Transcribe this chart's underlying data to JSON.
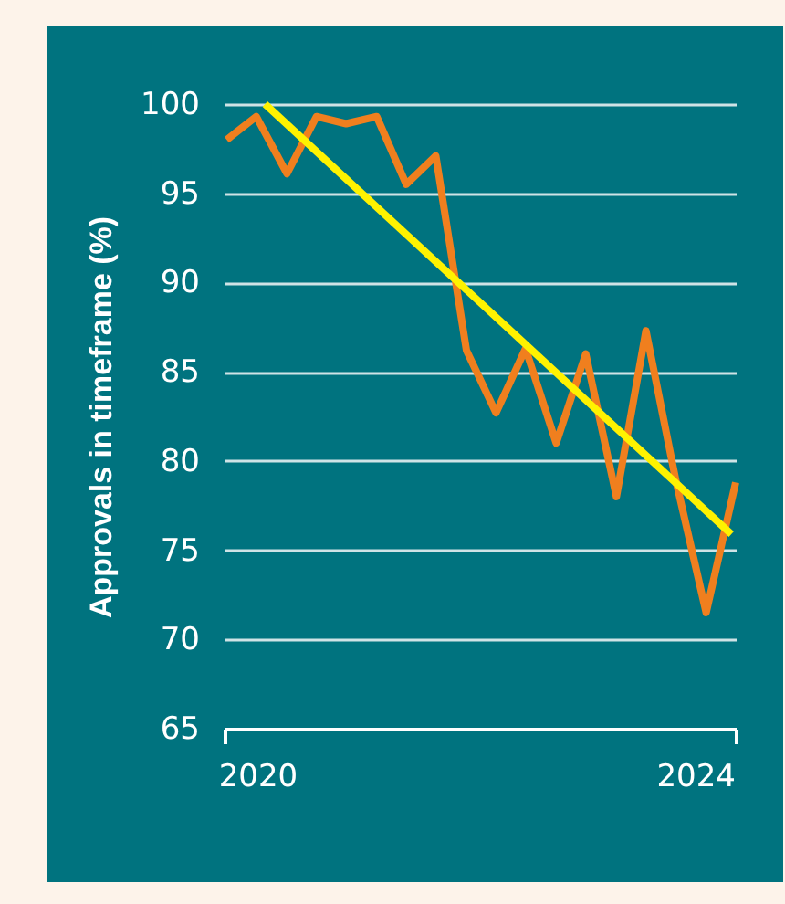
{
  "chart_data": {
    "type": "line",
    "ylabel": "Approvals in timeframe (%)",
    "xlim": [
      2019.7,
      2024.37
    ],
    "xticks": [
      {
        "value": 2019.7,
        "label": null
      },
      2020,
      2024,
      {
        "value": 2024.37,
        "label": null
      }
    ],
    "ylim": [
      65,
      100
    ],
    "yticks": [
      65,
      70,
      75,
      80,
      85,
      90,
      95,
      100
    ],
    "grid": "y",
    "series": [
      {
        "color": "#f07f1e",
        "x": [
          2019.72,
          2019.99,
          2020.27,
          2020.54,
          2020.81,
          2021.09,
          2021.36,
          2021.63,
          2021.91,
          2022.18,
          2022.45,
          2022.73,
          2023.0,
          2023.28,
          2023.55,
          2023.82,
          2024.1,
          2024.37
        ],
        "values": [
          98.0,
          99.3,
          96.1,
          99.3,
          98.9,
          99.3,
          95.5,
          97.1,
          86.2,
          82.7,
          86.3,
          81.0,
          86.0,
          78.0,
          87.3,
          79.0,
          71.5,
          78.8
        ]
      },
      {
        "type": "line",
        "color": "#fff200",
        "x": [
          2020.07,
          2024.33
        ],
        "values": [
          100,
          75.9
        ]
      }
    ]
  }
}
